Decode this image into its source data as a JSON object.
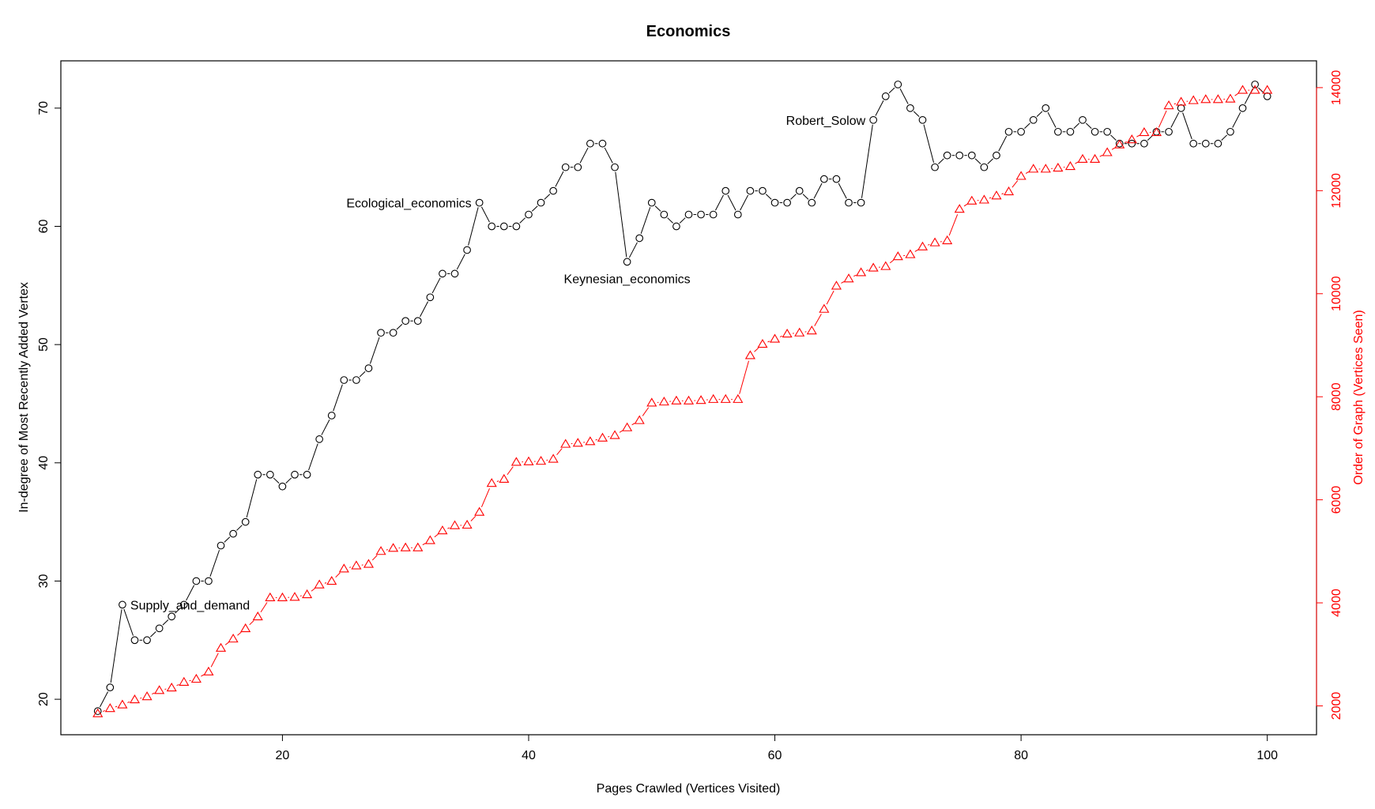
{
  "colors": {
    "left_series": "#000000",
    "right_series": "#ff0000",
    "background": "#ffffff"
  },
  "chart_data": {
    "type": "line",
    "title": "Economics",
    "xlabel": "Pages Crawled (Vertices Visited)",
    "ylabel_left": "In-degree of Most Recently Added Vertex",
    "ylabel_right": "Order of Graph (Vertices Seen)",
    "xlim": [
      2,
      104
    ],
    "ylim_left": [
      17,
      74
    ],
    "ylim_right": [
      1440,
      14520
    ],
    "x_ticks": [
      20,
      40,
      60,
      80,
      100
    ],
    "y_left_ticks": [
      20,
      30,
      40,
      50,
      60,
      70
    ],
    "y_right_ticks": [
      2000,
      4000,
      6000,
      8000,
      10000,
      12000,
      14000
    ],
    "grid": false,
    "x": [
      5,
      6,
      7,
      8,
      9,
      10,
      11,
      12,
      13,
      14,
      15,
      16,
      17,
      18,
      19,
      20,
      21,
      22,
      23,
      24,
      25,
      26,
      27,
      28,
      29,
      30,
      31,
      32,
      33,
      34,
      35,
      36,
      37,
      38,
      39,
      40,
      41,
      42,
      43,
      44,
      45,
      46,
      47,
      48,
      49,
      50,
      51,
      52,
      53,
      54,
      55,
      56,
      57,
      58,
      59,
      60,
      61,
      62,
      63,
      64,
      65,
      66,
      67,
      68,
      69,
      70,
      71,
      72,
      73,
      74,
      75,
      76,
      77,
      78,
      79,
      80,
      81,
      82,
      83,
      84,
      85,
      86,
      87,
      88,
      89,
      90,
      91,
      92,
      93,
      94,
      95,
      96,
      97,
      98,
      99,
      100
    ],
    "series": [
      {
        "name": "In-degree of Most Recently Added Vertex",
        "axis": "left",
        "marker": "circle",
        "color": "#000000",
        "values": [
          19,
          21,
          28,
          25,
          25,
          26,
          27,
          28,
          30,
          30,
          33,
          34,
          35,
          39,
          39,
          38,
          39,
          39,
          42,
          44,
          47,
          47,
          48,
          51,
          51,
          52,
          52,
          54,
          56,
          56,
          58,
          62,
          60,
          60,
          60,
          61,
          62,
          63,
          65,
          65,
          67,
          67,
          65,
          57,
          59,
          62,
          61,
          60,
          61,
          61,
          61,
          63,
          61,
          63,
          63,
          62,
          62,
          63,
          62,
          64,
          64,
          62,
          62,
          69,
          71,
          72,
          70,
          69,
          65,
          66,
          66,
          66,
          65,
          66,
          68,
          68,
          69,
          70,
          68,
          68,
          69,
          68,
          68,
          67,
          67,
          67,
          68,
          68,
          70,
          67,
          67,
          67,
          68,
          70,
          72,
          71
        ]
      },
      {
        "name": "Order of Graph (Vertices Seen)",
        "axis": "right",
        "marker": "triangle",
        "color": "#ff0000",
        "values": [
          1850,
          1950,
          2020,
          2120,
          2180,
          2300,
          2350,
          2460,
          2520,
          2660,
          3120,
          3300,
          3500,
          3730,
          4100,
          4100,
          4110,
          4160,
          4350,
          4420,
          4660,
          4720,
          4750,
          5000,
          5060,
          5070,
          5070,
          5210,
          5400,
          5500,
          5510,
          5760,
          6320,
          6400,
          6730,
          6740,
          6750,
          6790,
          7080,
          7100,
          7130,
          7200,
          7250,
          7400,
          7540,
          7880,
          7900,
          7920,
          7920,
          7930,
          7950,
          7950,
          7950,
          8800,
          9020,
          9120,
          9220,
          9240,
          9280,
          9700,
          10150,
          10290,
          10410,
          10500,
          10530,
          10720,
          10760,
          10910,
          10990,
          11030,
          11640,
          11800,
          11820,
          11900,
          11980,
          12280,
          12420,
          12420,
          12440,
          12470,
          12610,
          12610,
          12740,
          12890,
          12990,
          13130,
          13130,
          13650,
          13720,
          13750,
          13770,
          13770,
          13780,
          13950,
          13950,
          13950
        ]
      }
    ],
    "annotations": [
      {
        "x": 7,
        "y": 28,
        "text": "Supply_and_demand"
      },
      {
        "x": 36,
        "y": 62,
        "text": "Ecological_economics"
      },
      {
        "x": 48,
        "y": 57,
        "text": "Keynesian_economics"
      },
      {
        "x": 68,
        "y": 69,
        "text": "Robert_Solow"
      }
    ]
  }
}
